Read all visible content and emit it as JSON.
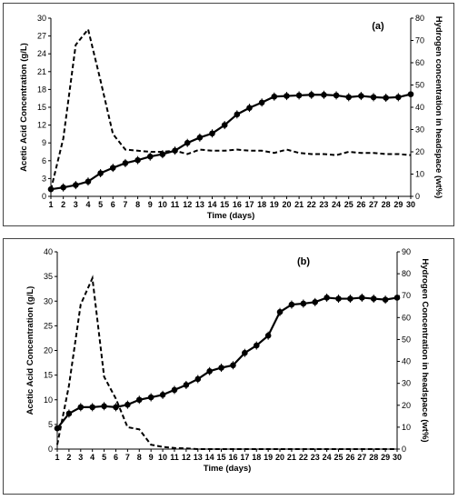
{
  "chart_data": [
    {
      "type": "line",
      "panel_label": "(a)",
      "xlabel": "Time (days)",
      "ylabel_left": "Acetic Acid Concentration (g/L)",
      "ylabel_right": "Hydrogen concentration in headspace (wt%)",
      "x": [
        1,
        2,
        3,
        4,
        5,
        6,
        7,
        8,
        9,
        10,
        11,
        12,
        13,
        14,
        15,
        16,
        17,
        18,
        19,
        20,
        21,
        22,
        23,
        24,
        25,
        26,
        27,
        28,
        29,
        30
      ],
      "x_ticks": [
        "1",
        "2",
        "3",
        "4",
        "5",
        "6",
        "7",
        "8",
        "9",
        "10",
        "11",
        "12",
        "13",
        "14",
        "15",
        "16",
        "17",
        "18",
        "19",
        "20",
        "21",
        "22",
        "23",
        "24",
        "25",
        "26",
        "27",
        "28",
        "29",
        "30"
      ],
      "ylim_left": [
        0,
        30
      ],
      "yticks_left": [
        "0",
        "3",
        "6",
        "9",
        "12",
        "15",
        "18",
        "21",
        "24",
        "27",
        "30"
      ],
      "ylim_right": [
        0,
        80
      ],
      "yticks_right": [
        "0",
        "10",
        "20",
        "30",
        "40",
        "50",
        "60",
        "70",
        "80"
      ],
      "series": [
        {
          "axis": "left",
          "style": "solid-markers",
          "values": [
            1.2,
            1.5,
            1.9,
            2.5,
            3.9,
            4.8,
            5.6,
            6.1,
            6.7,
            7.1,
            7.7,
            9.0,
            9.9,
            10.6,
            12.0,
            13.8,
            14.9,
            15.8,
            16.8,
            16.9,
            17.0,
            17.1,
            17.1,
            17.0,
            16.7,
            16.9,
            16.7,
            16.6,
            16.7,
            17.2
          ]
        },
        {
          "axis": "right",
          "style": "dashed",
          "values": [
            3,
            26,
            68,
            75,
            52,
            28,
            21,
            20.5,
            20,
            20,
            20.5,
            19,
            21,
            20.5,
            20.5,
            21,
            20.5,
            20.5,
            19.5,
            21,
            19.5,
            19,
            19,
            18.5,
            20,
            19.5,
            19.5,
            19,
            19,
            18.5
          ]
        }
      ]
    },
    {
      "type": "line",
      "panel_label": "(b)",
      "xlabel": "Time (days)",
      "ylabel_left": "Acetic Acid Concentration (g/L)",
      "ylabel_right": "Hydrogen Concentration in headspace (wt%)",
      "x": [
        1,
        2,
        3,
        4,
        5,
        6,
        7,
        8,
        9,
        10,
        11,
        12,
        13,
        14,
        15,
        16,
        17,
        18,
        19,
        20,
        21,
        22,
        23,
        24,
        25,
        26,
        27,
        28,
        29,
        30
      ],
      "x_ticks": [
        "1",
        "2",
        "3",
        "4",
        "5",
        "6",
        "7",
        "8",
        "9",
        "10",
        "11",
        "12",
        "13",
        "14",
        "15",
        "16",
        "17",
        "18",
        "19",
        "20",
        "21",
        "22",
        "23",
        "24",
        "25",
        "26",
        "27",
        "28",
        "29",
        "30"
      ],
      "ylim_left": [
        0,
        40
      ],
      "yticks_left": [
        "0",
        "5",
        "10",
        "15",
        "20",
        "25",
        "30",
        "35",
        "40"
      ],
      "ylim_right": [
        0,
        90
      ],
      "yticks_right": [
        "0",
        "10",
        "20",
        "30",
        "40",
        "50",
        "60",
        "70",
        "80",
        "90"
      ],
      "series": [
        {
          "axis": "left",
          "style": "solid-markers",
          "values": [
            4.2,
            7.2,
            8.5,
            8.5,
            8.7,
            8.5,
            9.0,
            10.0,
            10.5,
            11.0,
            12.0,
            13.0,
            14.2,
            15.8,
            16.5,
            17.0,
            19.5,
            21.0,
            23.0,
            27.8,
            29.3,
            29.5,
            29.8,
            30.7,
            30.5,
            30.5,
            30.7,
            30.5,
            30.3,
            30.7
          ]
        },
        {
          "axis": "right",
          "style": "dashed",
          "values": [
            2,
            29,
            66,
            78,
            33,
            23,
            10,
            9,
            2,
            1,
            0.5,
            0.3,
            0,
            0,
            0,
            0,
            0,
            0,
            0,
            0,
            0,
            0,
            0,
            0,
            0,
            0,
            0,
            0,
            0,
            0
          ]
        }
      ]
    }
  ]
}
